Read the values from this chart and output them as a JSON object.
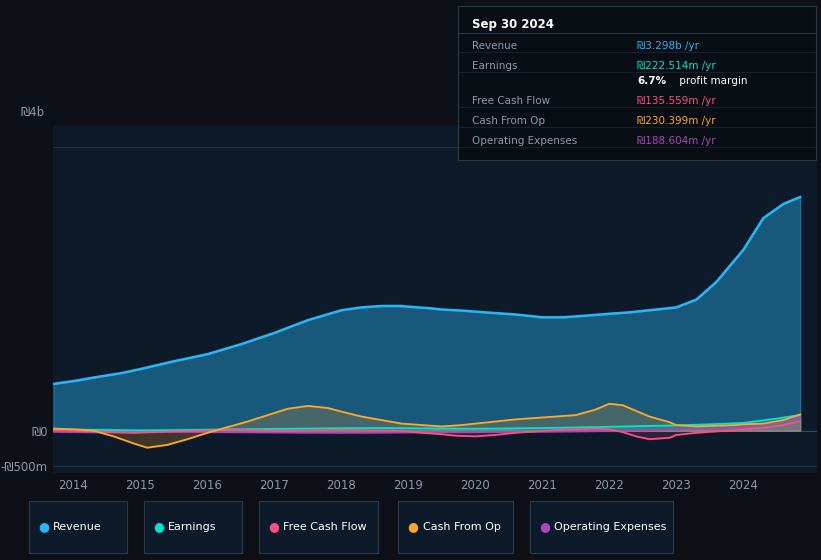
{
  "bg_color": "#0d1117",
  "plot_bg_color": "#0d1a2a",
  "title": "Sep 30 2024",
  "ylim_min": -600,
  "ylim_max": 4300,
  "revenue_color": "#29b6f6",
  "earnings_color": "#00e5cc",
  "free_cash_flow_color": "#ff4f81",
  "cash_from_op_color": "#ffa726",
  "operating_expenses_color": "#ab47bc",
  "table_bg": "#080e14",
  "table_title": "Sep 30 2024",
  "legend_items": [
    {
      "label": "Revenue",
      "color": "#29b6f6"
    },
    {
      "label": "Earnings",
      "color": "#00e5cc"
    },
    {
      "label": "Free Cash Flow",
      "color": "#ff4f81"
    },
    {
      "label": "Cash From Op",
      "color": "#ffa726"
    },
    {
      "label": "Operating Expenses",
      "color": "#ab47bc"
    }
  ]
}
